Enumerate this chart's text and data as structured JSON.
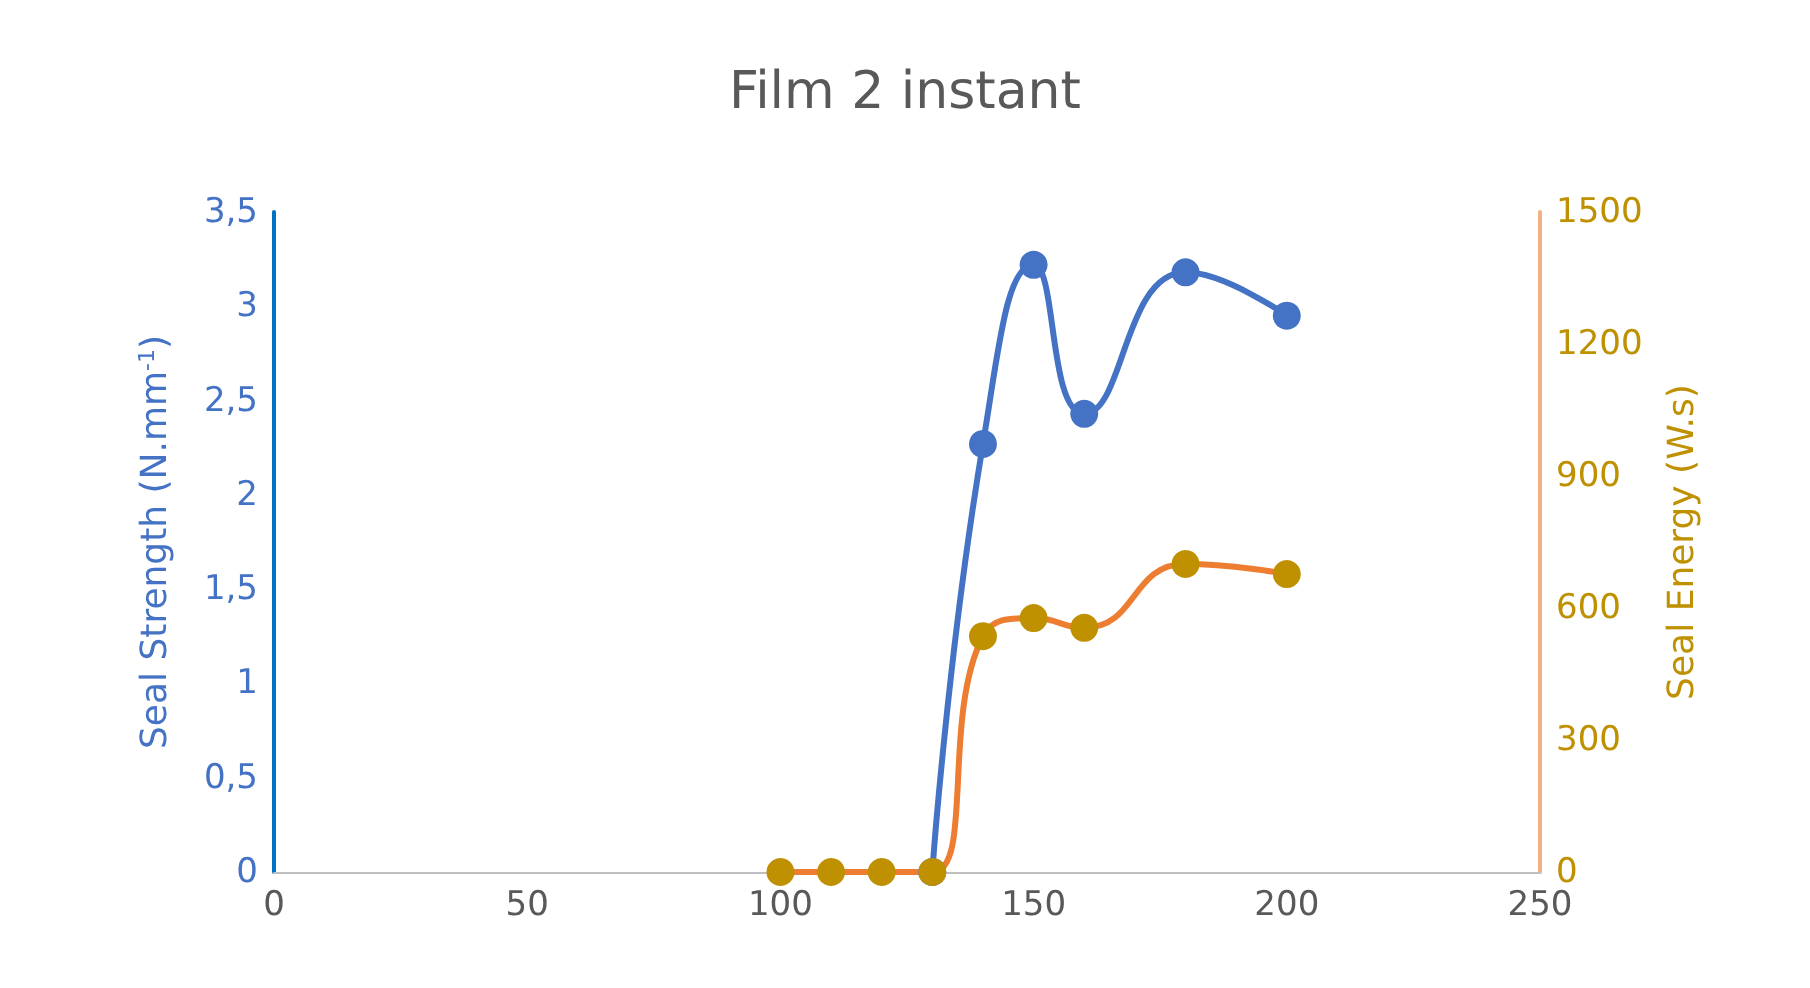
{
  "chart_data": {
    "type": "line",
    "title": "Film 2 instant",
    "ylabel": "Seal Strength (N.mm$^{-1}$)",
    "y2label": "Seal Energy (W.s)",
    "x": [
      100,
      110,
      120,
      130,
      140,
      150,
      160,
      180,
      200
    ],
    "series": [
      {
        "color": "#4472c4",
        "values": [
          null,
          null,
          null,
          0,
          2.27,
          3.22,
          2.43,
          3.18,
          2.95
        ]
      },
      {
        "color": "#ed7d31",
        "colors": [
          "#bf9000",
          "#bf9000",
          "#bf9000",
          "#bf9000",
          "#bf9000",
          "#bf9000",
          "#bf9000",
          "#bf9000",
          "#bf9000"
        ],
        "axis": "y2",
        "values": [
          0,
          0,
          0,
          0,
          536,
          577,
          555,
          700,
          677
        ]
      }
    ],
    "xlim": [
      0,
      250
    ],
    "xticks": [
      0,
      50,
      100,
      150,
      200,
      250
    ],
    "ylim": [
      0,
      3.5
    ],
    "yticks": [
      0,
      {
        "value": 0.5,
        "label": "0,5"
      },
      1,
      {
        "value": 1.5,
        "label": "1,5"
      },
      2,
      {
        "value": 2.5,
        "label": "2,5"
      },
      3,
      {
        "value": 3.5,
        "label": "3,5"
      }
    ],
    "y2lim": [
      0,
      1500
    ],
    "y2ticks": [
      0,
      300,
      600,
      900,
      1200,
      1500
    ],
    "marker": "circle",
    "grid": false
  }
}
